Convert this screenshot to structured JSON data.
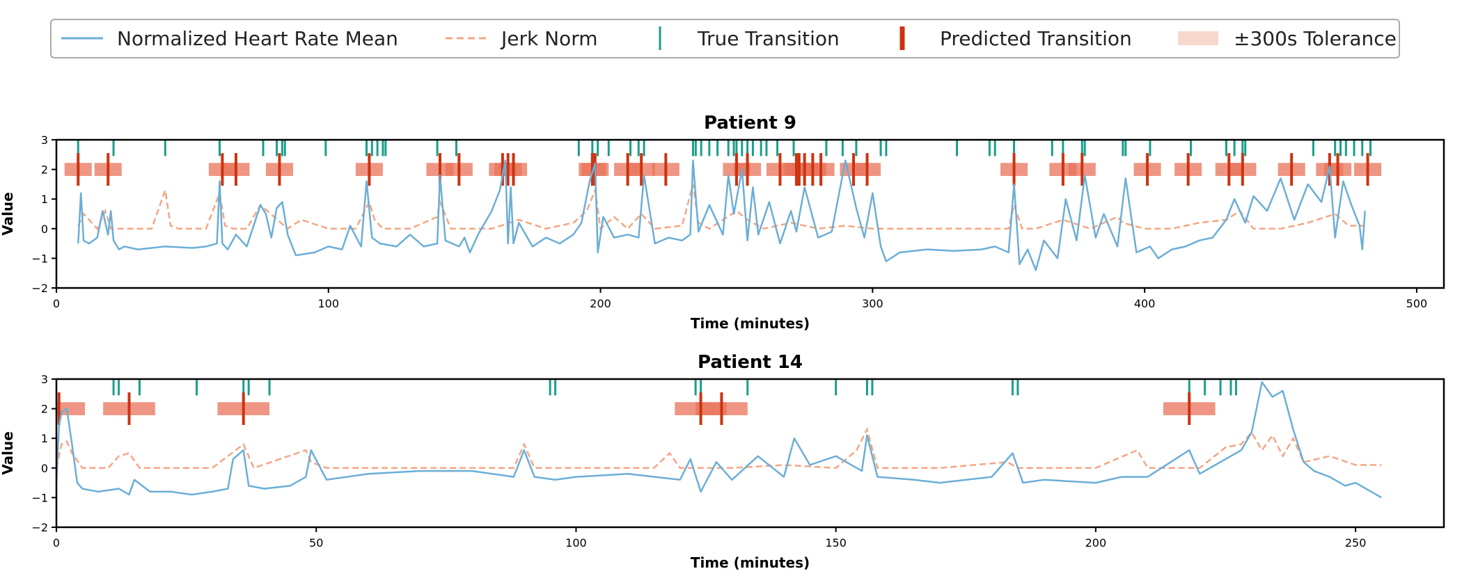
{
  "legend": {
    "items": [
      {
        "label": "Normalized Heart Rate Mean",
        "kind": "line",
        "color": "#6baed6"
      },
      {
        "label": "Jerk Norm",
        "kind": "dashed",
        "color": "#f4a582"
      },
      {
        "label": "True Transition",
        "kind": "vtick",
        "color": "#1b9e8a"
      },
      {
        "label": "Predicted Transition",
        "kind": "vtick-bold",
        "color": "#cc3311"
      },
      {
        "label": "±300s Tolerance",
        "kind": "band",
        "color": "#f6d8cc"
      }
    ]
  },
  "colors": {
    "heart_rate": "#6baed6",
    "jerk": "#f4a582",
    "true_transition": "#1b9e8a",
    "predicted_transition": "#cc3311",
    "tolerance": "#e8735a"
  },
  "chart_data": [
    {
      "type": "line",
      "title": "Patient 9",
      "xlabel": "Time (minutes)",
      "ylabel": "Value",
      "xlim": [
        0,
        510
      ],
      "ylim": [
        -2,
        3
      ],
      "xticks": [
        0,
        100,
        200,
        300,
        400,
        500
      ],
      "yticks": [
        -2,
        -1,
        0,
        1,
        2,
        3
      ],
      "tolerance_minutes": 5,
      "true_transitions": [
        8,
        21,
        40,
        60,
        76,
        81,
        83,
        84,
        99,
        114,
        116,
        118,
        120,
        121,
        140,
        147,
        192,
        197,
        199,
        203,
        211,
        214,
        216,
        234,
        235,
        237,
        240,
        243,
        247,
        249,
        250,
        252,
        254,
        256,
        259,
        261,
        265,
        271,
        283,
        289,
        294,
        303,
        305,
        331,
        343,
        345,
        352,
        366,
        370,
        377,
        378,
        392,
        393,
        402,
        417,
        430,
        433,
        436,
        437,
        462,
        470,
        472,
        474,
        477,
        480,
        483
      ],
      "predicted_transitions": [
        8,
        19,
        61,
        66,
        82,
        115,
        141,
        148,
        164,
        166,
        168,
        197,
        198,
        210,
        215,
        224,
        250,
        254,
        266,
        272,
        273,
        275,
        278,
        281,
        293,
        298,
        352,
        370,
        377,
        401,
        416,
        431,
        436,
        454,
        468,
        471,
        482
      ],
      "heart_rate": {
        "x": [
          8,
          9,
          10,
          12,
          15,
          17,
          19,
          20,
          21,
          23,
          25,
          30,
          40,
          50,
          55,
          59,
          60,
          61,
          63,
          66,
          70,
          75,
          77,
          79,
          81,
          83,
          85,
          88,
          95,
          100,
          105,
          108,
          112,
          114,
          116,
          119,
          125,
          130,
          135,
          140,
          141,
          143,
          148,
          150,
          152,
          155,
          160,
          163,
          165,
          166,
          167,
          168,
          170,
          175,
          180,
          185,
          190,
          193,
          196,
          198,
          199,
          201,
          205,
          210,
          214,
          216,
          220,
          225,
          230,
          233,
          234,
          236,
          240,
          245,
          247,
          249,
          252,
          254,
          256,
          258,
          262,
          266,
          270,
          272,
          275,
          280,
          285,
          290,
          294,
          297,
          300,
          303,
          305,
          310,
          320,
          330,
          340,
          345,
          350,
          352,
          354,
          357,
          360,
          363,
          368,
          371,
          375,
          378,
          382,
          385,
          390,
          393,
          397,
          402,
          405,
          410,
          415,
          420,
          425,
          430,
          433,
          437,
          440,
          445,
          450,
          455,
          460,
          465,
          468,
          470,
          473,
          476,
          479,
          480,
          481
        ],
        "y": [
          -0.5,
          1.2,
          -0.4,
          -0.5,
          -0.3,
          0.6,
          -0.2,
          0.6,
          -0.4,
          -0.7,
          -0.6,
          -0.7,
          -0.6,
          -0.65,
          -0.6,
          -0.5,
          1.6,
          -0.5,
          -0.7,
          -0.2,
          -0.6,
          0.8,
          0.5,
          -0.3,
          0.7,
          0.9,
          -0.2,
          -0.9,
          -0.8,
          -0.6,
          -0.7,
          0.1,
          -0.6,
          1.6,
          -0.3,
          -0.5,
          -0.6,
          -0.2,
          -0.6,
          -0.5,
          1.8,
          -0.4,
          -0.6,
          -0.3,
          -0.8,
          -0.2,
          0.6,
          1.3,
          2.3,
          -0.5,
          1.4,
          -0.5,
          0.2,
          -0.6,
          -0.3,
          -0.5,
          -0.2,
          0.2,
          1.6,
          2.2,
          -0.8,
          0.4,
          -0.3,
          -0.2,
          -0.3,
          1.8,
          -0.5,
          -0.3,
          -0.4,
          -0.2,
          2.3,
          -0.1,
          0.8,
          -0.2,
          1.8,
          0.5,
          2.0,
          -0.4,
          1.4,
          -0.2,
          0.9,
          -0.5,
          0.6,
          -0.1,
          1.4,
          -0.3,
          -0.1,
          2.3,
          0.7,
          -0.3,
          1.2,
          -0.6,
          -1.1,
          -0.8,
          -0.7,
          -0.75,
          -0.7,
          -0.6,
          -0.8,
          1.5,
          -1.2,
          -0.7,
          -1.4,
          -0.4,
          -1.0,
          1.0,
          -0.4,
          1.8,
          -0.3,
          0.5,
          -0.6,
          1.7,
          -0.8,
          -0.6,
          -1.0,
          -0.7,
          -0.6,
          -0.4,
          -0.3,
          0.3,
          1.0,
          0.2,
          1.1,
          0.6,
          1.7,
          0.3,
          1.5,
          0.9,
          2.1,
          -0.3,
          1.6,
          0.8,
          0.1,
          -0.7,
          0.6
        ]
      },
      "jerk": {
        "x": [
          8,
          10,
          15,
          18,
          20,
          25,
          35,
          40,
          42,
          45,
          55,
          60,
          62,
          65,
          70,
          75,
          85,
          90,
          100,
          110,
          115,
          117,
          120,
          130,
          140,
          141,
          145,
          150,
          160,
          170,
          180,
          190,
          195,
          198,
          200,
          205,
          210,
          215,
          220,
          230,
          234,
          236,
          240,
          250,
          254,
          260,
          270,
          280,
          290,
          300,
          320,
          340,
          350,
          352,
          355,
          360,
          370,
          380,
          390,
          392,
          400,
          410,
          420,
          430,
          435,
          440,
          450,
          460,
          470,
          475,
          481
        ],
        "y": [
          0.1,
          0.5,
          0.0,
          0.6,
          0.0,
          0.0,
          0.0,
          1.3,
          0.1,
          0.0,
          0.0,
          1.2,
          0.1,
          0.0,
          0.0,
          0.8,
          0.0,
          0.3,
          0.0,
          0.0,
          0.9,
          0.3,
          0.0,
          0.0,
          0.4,
          0.9,
          0.0,
          0.0,
          0.0,
          0.3,
          0.0,
          0.2,
          0.6,
          1.3,
          0.0,
          0.4,
          0.0,
          0.5,
          0.0,
          0.1,
          1.5,
          0.2,
          0.0,
          0.6,
          0.3,
          0.0,
          0.2,
          0.0,
          0.1,
          0.0,
          0.0,
          0.0,
          0.0,
          0.8,
          0.0,
          0.0,
          0.3,
          0.0,
          0.4,
          0.2,
          0.0,
          0.0,
          0.2,
          0.3,
          0.6,
          0.0,
          0.0,
          0.2,
          0.5,
          0.1,
          0.1
        ]
      }
    },
    {
      "type": "line",
      "title": "Patient 14",
      "xlabel": "Time (minutes)",
      "ylabel": "Value",
      "xlim": [
        0,
        267
      ],
      "ylim": [
        -2,
        3
      ],
      "xticks": [
        0,
        50,
        100,
        150,
        200,
        250
      ],
      "yticks": [
        -2,
        -1,
        0,
        1,
        2,
        3
      ],
      "tolerance_minutes": 5,
      "true_transitions": [
        11,
        12,
        16,
        27,
        36,
        37,
        41,
        95,
        96,
        123,
        124,
        133,
        150,
        156,
        157,
        184,
        185,
        218,
        221,
        224,
        226,
        227
      ],
      "predicted_transitions": [
        0.5,
        14,
        36,
        124,
        128,
        218
      ],
      "heart_rate": {
        "x": [
          0,
          0.5,
          1,
          2,
          3,
          4,
          5,
          8,
          12,
          14,
          15,
          18,
          22,
          26,
          30,
          33,
          34,
          36,
          37,
          40,
          45,
          48,
          49,
          52,
          60,
          70,
          80,
          88,
          90,
          92,
          96,
          100,
          110,
          120,
          122,
          124,
          127,
          130,
          135,
          140,
          142,
          145,
          150,
          155,
          156,
          158,
          165,
          170,
          180,
          184,
          186,
          190,
          200,
          205,
          210,
          218,
          220,
          225,
          228,
          230,
          232,
          234,
          236,
          238,
          240,
          242,
          245,
          248,
          250,
          255
        ],
        "y": [
          -0.5,
          1.4,
          1.9,
          2.0,
          0.8,
          -0.5,
          -0.7,
          -0.8,
          -0.7,
          -0.9,
          -0.4,
          -0.8,
          -0.8,
          -0.9,
          -0.8,
          -0.7,
          0.3,
          0.6,
          -0.6,
          -0.7,
          -0.6,
          -0.3,
          0.6,
          -0.4,
          -0.2,
          -0.1,
          -0.1,
          -0.3,
          0.6,
          -0.3,
          -0.4,
          -0.3,
          -0.2,
          -0.4,
          0.3,
          -0.8,
          0.2,
          -0.4,
          0.4,
          -0.3,
          1.0,
          0.1,
          0.4,
          -0.1,
          1.1,
          -0.3,
          -0.4,
          -0.5,
          -0.3,
          0.5,
          -0.5,
          -0.4,
          -0.5,
          -0.3,
          -0.3,
          0.6,
          -0.2,
          0.3,
          0.6,
          1.2,
          2.9,
          2.4,
          2.6,
          1.3,
          0.2,
          -0.1,
          -0.3,
          -0.6,
          -0.5,
          -1.0
        ]
      },
      "jerk": {
        "x": [
          0,
          1,
          2,
          3,
          5,
          10,
          12,
          14,
          16,
          20,
          30,
          36,
          38,
          48,
          49,
          52,
          70,
          88,
          90,
          92,
          100,
          115,
          118,
          120,
          130,
          140,
          150,
          154,
          156,
          158,
          170,
          183,
          185,
          200,
          208,
          210,
          220,
          225,
          228,
          230,
          232,
          234,
          236,
          238,
          240,
          245,
          250,
          255
        ],
        "y": [
          0.0,
          0.8,
          0.9,
          0.5,
          0.0,
          0.0,
          0.4,
          0.5,
          0.0,
          0.0,
          0.0,
          0.8,
          0.0,
          0.6,
          0.2,
          0.0,
          0.0,
          0.0,
          0.8,
          0.0,
          0.0,
          0.0,
          0.5,
          0.0,
          0.0,
          0.1,
          0.0,
          0.6,
          1.3,
          0.0,
          0.0,
          0.2,
          0.0,
          0.0,
          0.6,
          0.0,
          0.0,
          0.7,
          0.8,
          1.2,
          0.6,
          1.1,
          0.4,
          1.0,
          0.2,
          0.4,
          0.1,
          0.1
        ]
      }
    }
  ]
}
